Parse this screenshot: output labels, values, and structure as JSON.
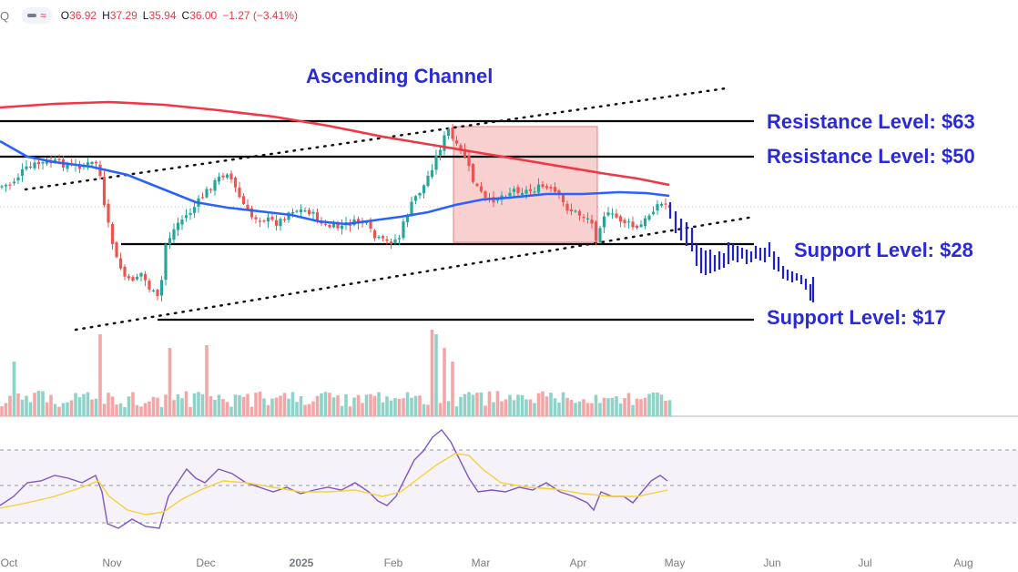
{
  "header": {
    "symbol_fragment": "Q",
    "open_label": "O",
    "open": "36.92",
    "high_label": "H",
    "high": "37.29",
    "low_label": "L",
    "low": "35.94",
    "close_label": "C",
    "close": "36.00",
    "change": "−1.27 (−3.41%)"
  },
  "colors": {
    "up": "#26a69a",
    "down": "#ef5350",
    "ma_fast": "#2962ff",
    "ma_slow": "#f23645",
    "annotation": "#2a2ad8",
    "rsi": "#7e57c2",
    "rsi_ma": "#f7d13b",
    "highlight": "#f8c8c8"
  },
  "chart_data": [
    {
      "type": "candlestick",
      "title": "",
      "annotations": {
        "channel": "Ascending Channel",
        "resistance_high": "Resistance Level: $63",
        "resistance_low": "Resistance Level: $50",
        "support_high": "Support Level: $28",
        "support_low": "Support Level: $17"
      },
      "levels": [
        63,
        50,
        28,
        17
      ],
      "x_tick_labels": [
        "Oct",
        "Nov",
        "Dec",
        "2025",
        "Feb",
        "Mar",
        "Apr",
        "May",
        "Jun",
        "Jul",
        "Aug"
      ],
      "last": {
        "open": 36.92,
        "high": 37.29,
        "low": 35.94,
        "close": 36.0
      },
      "series": [
        {
          "name": "",
          "kind": "moving-average-fast"
        },
        {
          "name": "",
          "kind": "moving-average-slow"
        }
      ]
    },
    {
      "type": "bar",
      "kind": "volume"
    },
    {
      "type": "line",
      "kind": "RSI",
      "guides": [
        70,
        50,
        30
      ]
    }
  ]
}
